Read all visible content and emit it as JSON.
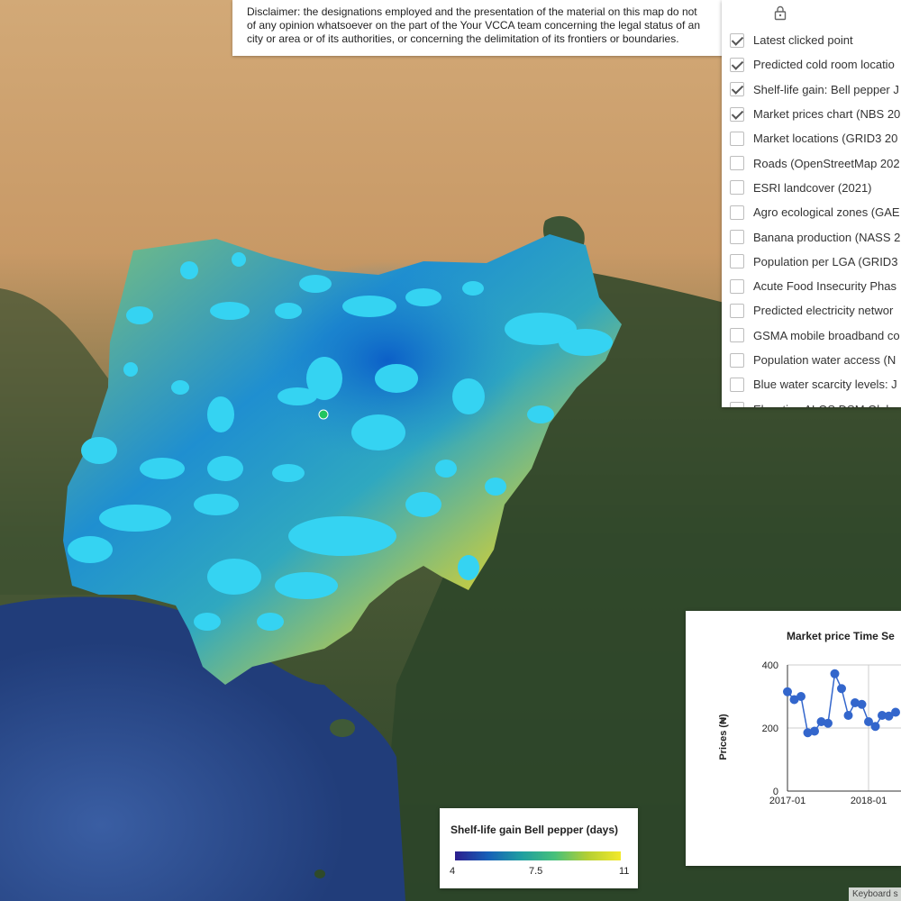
{
  "disclaimer": {
    "lines": [
      "Disclaimer: the designations employed and the presentation of the material on this map do not",
      "of any opinion whatsoever on the part of the Your VCCA team concerning the legal status of an",
      "city or area or of its authorities, or concerning the delimitation of its frontiers or boundaries."
    ]
  },
  "layers": {
    "lock_icon": "lock-icon",
    "items": [
      {
        "label": "Latest clicked point",
        "checked": true
      },
      {
        "label": "Predicted cold room locatio",
        "checked": true
      },
      {
        "label": "Shelf-life gain: Bell pepper J",
        "checked": true
      },
      {
        "label": "Market prices chart (NBS 20",
        "checked": true
      },
      {
        "label": "Market locations (GRID3 20",
        "checked": false
      },
      {
        "label": "Roads (OpenStreetMap 202",
        "checked": false
      },
      {
        "label": "ESRI landcover (2021)",
        "checked": false
      },
      {
        "label": "Agro ecological zones (GAE",
        "checked": false
      },
      {
        "label": "Banana production (NASS 2",
        "checked": false
      },
      {
        "label": "Population per LGA (GRID3",
        "checked": false
      },
      {
        "label": "Acute Food Insecurity Phas",
        "checked": false
      },
      {
        "label": "Predicted electricity networ",
        "checked": false
      },
      {
        "label": "GSMA mobile broadband co",
        "checked": false
      },
      {
        "label": "Population water access (N",
        "checked": false
      },
      {
        "label": "Blue water scarcity levels: J",
        "checked": false
      },
      {
        "label": "Elevation ALOS DSM Globa",
        "checked": false
      }
    ]
  },
  "chart": {
    "title": "Market price Time Se",
    "ylabel": "Prices (₦)",
    "colors": {
      "series": "#3366cc",
      "grid": "#cccccc",
      "axis": "#333333"
    }
  },
  "chart_data": {
    "type": "line",
    "title": "Market price Time Se",
    "ylabel": "Prices (₦)",
    "ylim": [
      0,
      400
    ],
    "yticks": [
      0,
      200,
      400
    ],
    "xticks": [
      "2017-01",
      "2018-01"
    ],
    "series": [
      {
        "x": [
          "2017-01",
          "2017-02",
          "2017-03",
          "2017-04",
          "2017-05",
          "2017-06",
          "2017-07",
          "2017-08",
          "2017-09",
          "2017-10",
          "2017-11",
          "2017-12",
          "2018-01",
          "2018-02",
          "2018-03",
          "2018-04",
          "2018-05"
        ],
        "values": [
          315,
          290,
          300,
          185,
          190,
          220,
          215,
          372,
          325,
          240,
          280,
          275,
          220,
          205,
          240,
          238,
          250
        ]
      }
    ]
  },
  "legend": {
    "title": "Shelf-life gain Bell pepper (days)",
    "min": "4",
    "mid": "7.5",
    "max": "11",
    "colors": [
      "#2c1e8e",
      "#1660b8",
      "#1f9ea1",
      "#46c07b",
      "#b4cf33",
      "#f3e92a"
    ]
  },
  "map": {
    "colors": {
      "desert": "#c99a6a",
      "forest": "#2f4a2a",
      "ocean": "#2d4d8e",
      "water_highlight": "#35d3f2",
      "marker": "#22c55e"
    }
  },
  "attribution": "Keyboard s"
}
